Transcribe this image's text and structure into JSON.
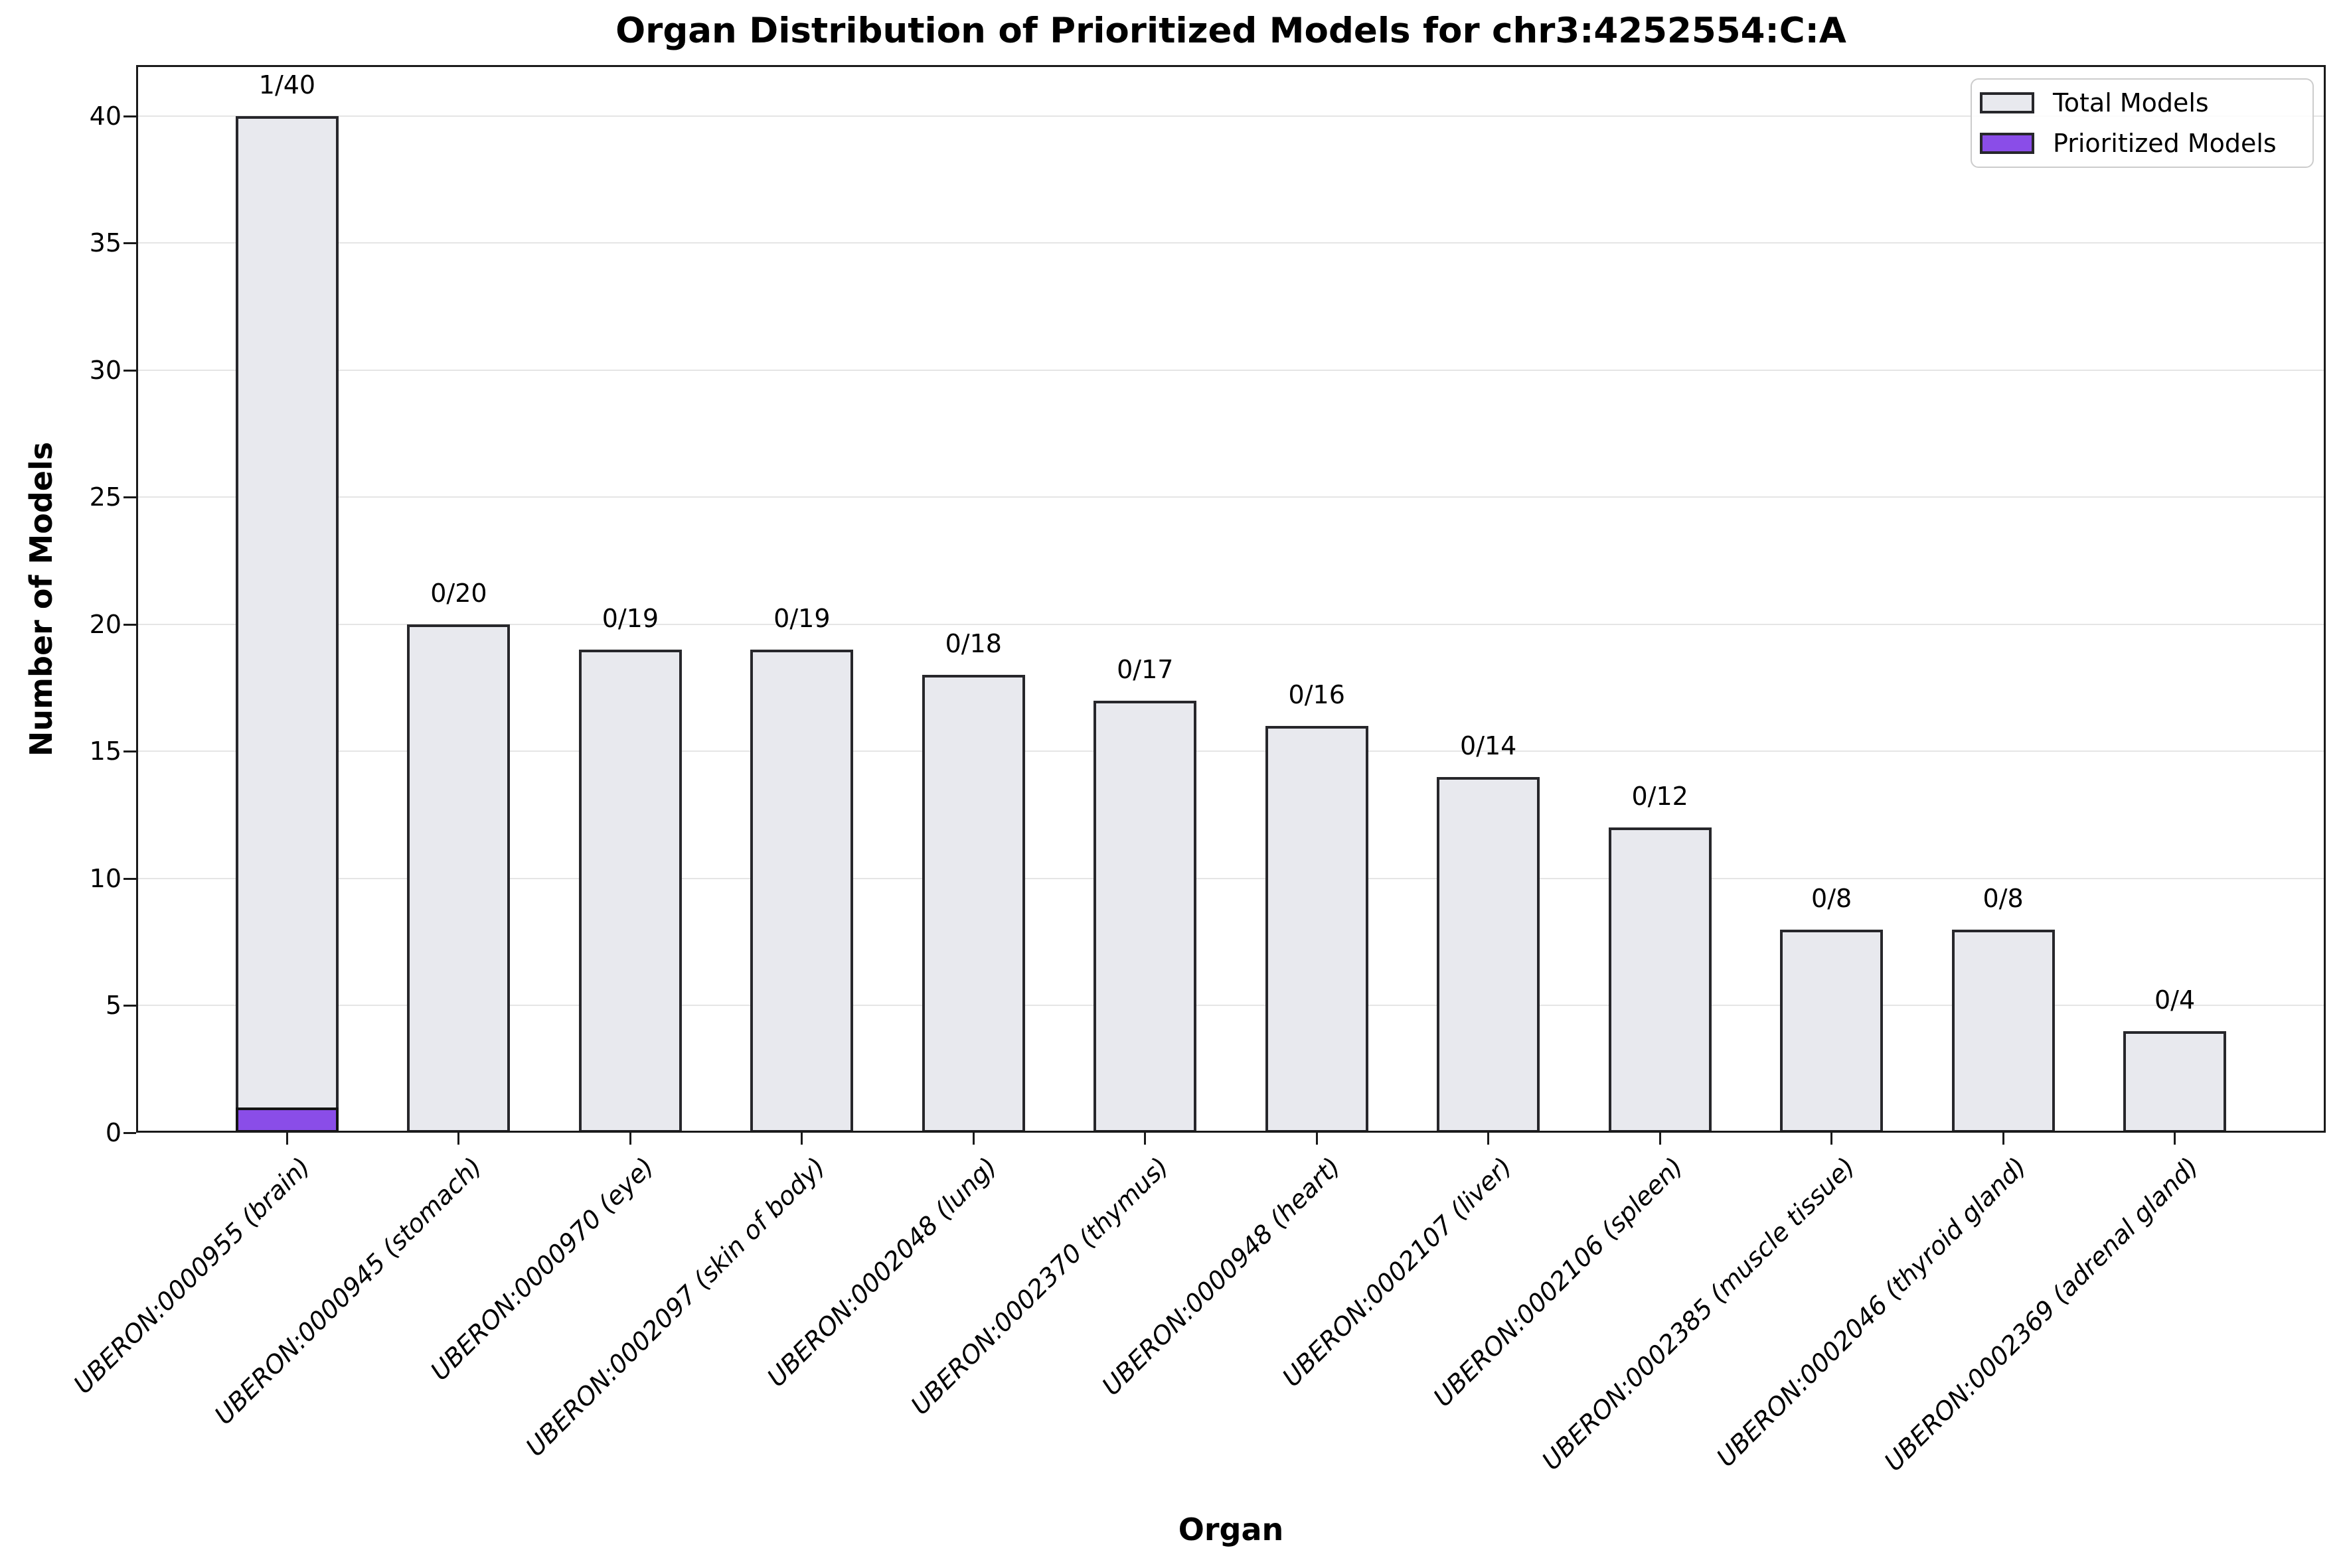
{
  "chart_data": {
    "type": "bar",
    "title": "Organ Distribution of Prioritized Models for chr3:4252554:C:A",
    "xlabel": "Organ",
    "ylabel": "Number of Models",
    "ylim": [
      0,
      42
    ],
    "yticks": [
      0,
      5,
      10,
      15,
      20,
      25,
      30,
      35,
      40
    ],
    "grid": true,
    "categories": [
      "UBERON:0000955 (brain)",
      "UBERON:0000945 (stomach)",
      "UBERON:0000970 (eye)",
      "UBERON:0002097 (skin of body)",
      "UBERON:0002048 (lung)",
      "UBERON:0002370 (thymus)",
      "UBERON:0000948 (heart)",
      "UBERON:0002107 (liver)",
      "UBERON:0002106 (spleen)",
      "UBERON:0002385 (muscle tissue)",
      "UBERON:0002046 (thyroid gland)",
      "UBERON:0002369 (adrenal gland)"
    ],
    "series": [
      {
        "name": "Total Models",
        "values": [
          40,
          20,
          19,
          19,
          18,
          17,
          16,
          14,
          12,
          8,
          8,
          4
        ],
        "fill": "#e8e9ee",
        "edge": "#27272b"
      },
      {
        "name": "Prioritized Models",
        "values": [
          1,
          0,
          0,
          0,
          0,
          0,
          0,
          0,
          0,
          0,
          0,
          0
        ],
        "fill": "#8a4de8",
        "edge": "#141414"
      }
    ],
    "bar_labels": [
      "1/40",
      "0/20",
      "0/19",
      "0/19",
      "0/18",
      "0/17",
      "0/16",
      "0/14",
      "0/12",
      "0/8",
      "0/8",
      "0/4"
    ],
    "legend": {
      "position": "upper right",
      "entries": [
        {
          "label": "Total Models",
          "color": "#e8e9ee"
        },
        {
          "label": "Prioritized Models",
          "color": "#8a4de8"
        }
      ]
    },
    "colors": {
      "grid": "#e5e5e5",
      "spine": "#1a1a1a",
      "text": "#000000",
      "background": "#ffffff"
    }
  }
}
